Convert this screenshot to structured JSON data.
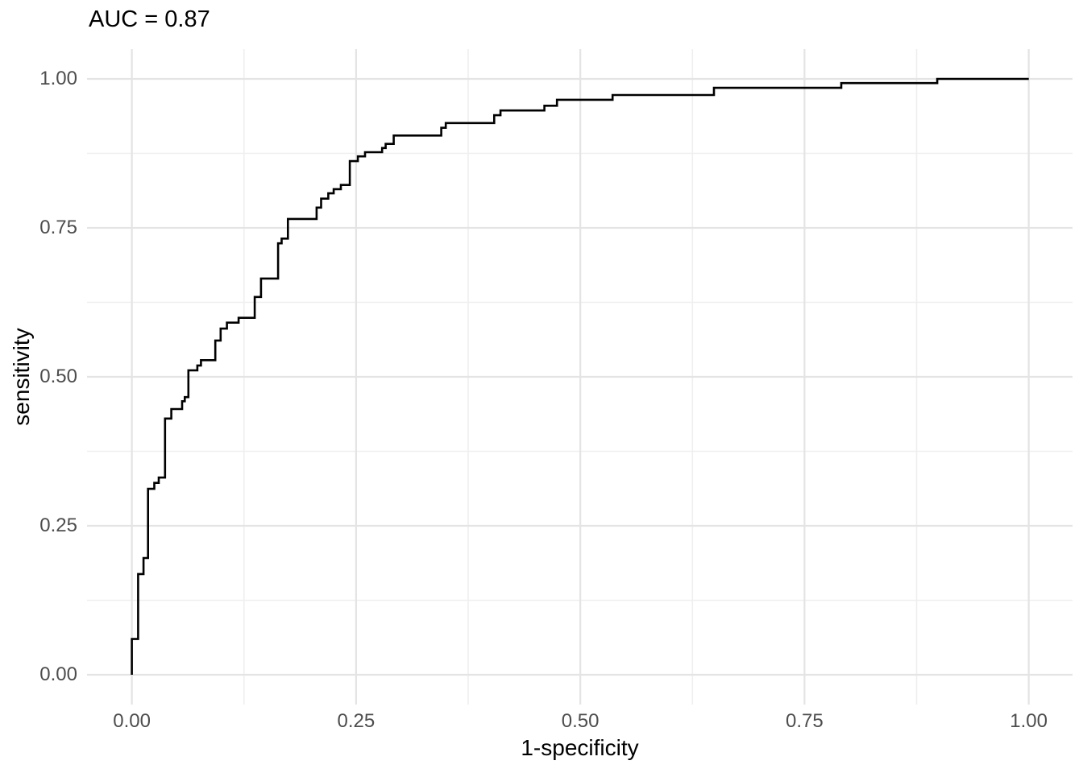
{
  "chart_data": {
    "type": "line",
    "subtype": "roc-step-curve",
    "title": "AUC = 0.87",
    "auc": 0.87,
    "xlabel": "1-specificity",
    "ylabel": "sensitivity",
    "x_tick_labels": [
      "0.00",
      "0.25",
      "0.50",
      "0.75",
      "1.00"
    ],
    "x_tick_values": [
      0,
      0.25,
      0.5,
      0.75,
      1
    ],
    "y_tick_labels": [
      "0.00",
      "0.25",
      "0.50",
      "0.75",
      "1.00"
    ],
    "y_tick_values": [
      0,
      0.25,
      0.5,
      0.75,
      1
    ],
    "minor_grid_values": [
      0.125,
      0.375,
      0.625,
      0.875
    ],
    "xlim": [
      0,
      1
    ],
    "ylim": [
      0,
      1
    ],
    "axis_expansion": 0.05,
    "grid": "major and minor gridlines, no axis lines, no tick marks (theme_minimal)",
    "legend_position": "none",
    "colors": {
      "curve": "#000000",
      "grid_major": "#e4e4e4",
      "grid_minor": "#efefef",
      "tick_text": "#4d4d4d",
      "title_text": "#000000",
      "background": "#ffffff"
    },
    "points": [
      [
        0.0,
        0.0
      ],
      [
        0.0,
        0.06
      ],
      [
        0.007,
        0.06
      ],
      [
        0.007,
        0.169
      ],
      [
        0.013,
        0.169
      ],
      [
        0.013,
        0.196
      ],
      [
        0.018,
        0.196
      ],
      [
        0.018,
        0.312
      ],
      [
        0.025,
        0.312
      ],
      [
        0.025,
        0.322
      ],
      [
        0.03,
        0.322
      ],
      [
        0.03,
        0.331
      ],
      [
        0.037,
        0.331
      ],
      [
        0.037,
        0.43
      ],
      [
        0.044,
        0.43
      ],
      [
        0.044,
        0.446
      ],
      [
        0.056,
        0.446
      ],
      [
        0.056,
        0.459
      ],
      [
        0.059,
        0.459
      ],
      [
        0.059,
        0.466
      ],
      [
        0.063,
        0.466
      ],
      [
        0.063,
        0.511
      ],
      [
        0.073,
        0.511
      ],
      [
        0.073,
        0.519
      ],
      [
        0.077,
        0.519
      ],
      [
        0.077,
        0.528
      ],
      [
        0.093,
        0.528
      ],
      [
        0.093,
        0.561
      ],
      [
        0.099,
        0.561
      ],
      [
        0.099,
        0.581
      ],
      [
        0.106,
        0.581
      ],
      [
        0.106,
        0.591
      ],
      [
        0.119,
        0.591
      ],
      [
        0.119,
        0.599
      ],
      [
        0.137,
        0.599
      ],
      [
        0.137,
        0.634
      ],
      [
        0.144,
        0.634
      ],
      [
        0.144,
        0.665
      ],
      [
        0.163,
        0.665
      ],
      [
        0.163,
        0.724
      ],
      [
        0.167,
        0.724
      ],
      [
        0.167,
        0.732
      ],
      [
        0.174,
        0.732
      ],
      [
        0.174,
        0.765
      ],
      [
        0.206,
        0.765
      ],
      [
        0.206,
        0.784
      ],
      [
        0.211,
        0.784
      ],
      [
        0.211,
        0.799
      ],
      [
        0.219,
        0.799
      ],
      [
        0.219,
        0.808
      ],
      [
        0.225,
        0.808
      ],
      [
        0.225,
        0.815
      ],
      [
        0.233,
        0.815
      ],
      [
        0.233,
        0.822
      ],
      [
        0.243,
        0.822
      ],
      [
        0.243,
        0.862
      ],
      [
        0.252,
        0.862
      ],
      [
        0.252,
        0.87
      ],
      [
        0.26,
        0.87
      ],
      [
        0.26,
        0.877
      ],
      [
        0.279,
        0.877
      ],
      [
        0.279,
        0.884
      ],
      [
        0.283,
        0.884
      ],
      [
        0.283,
        0.891
      ],
      [
        0.292,
        0.891
      ],
      [
        0.292,
        0.905
      ],
      [
        0.345,
        0.905
      ],
      [
        0.345,
        0.918
      ],
      [
        0.35,
        0.918
      ],
      [
        0.35,
        0.926
      ],
      [
        0.404,
        0.926
      ],
      [
        0.404,
        0.939
      ],
      [
        0.411,
        0.939
      ],
      [
        0.411,
        0.947
      ],
      [
        0.46,
        0.947
      ],
      [
        0.46,
        0.955
      ],
      [
        0.474,
        0.955
      ],
      [
        0.474,
        0.965
      ],
      [
        0.536,
        0.965
      ],
      [
        0.536,
        0.973
      ],
      [
        0.649,
        0.973
      ],
      [
        0.649,
        0.985
      ],
      [
        0.791,
        0.985
      ],
      [
        0.791,
        0.993
      ],
      [
        0.898,
        0.993
      ],
      [
        0.898,
        1.0
      ],
      [
        1.0,
        1.0
      ]
    ]
  }
}
